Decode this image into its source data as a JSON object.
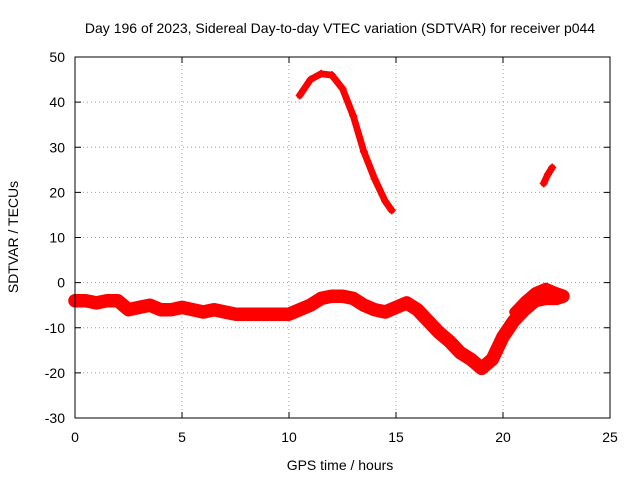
{
  "chart_data": {
    "type": "scatter",
    "title": "Day 196 of 2023, Sidereal Day-to-day VTEC variation (SDTVAR) for receiver p044",
    "xlabel": "GPS time / hours",
    "ylabel": "SDTVAR / TECUs",
    "xlim": [
      0,
      25
    ],
    "ylim": [
      -30,
      50
    ],
    "xticks": [
      0,
      5,
      10,
      15,
      20,
      25
    ],
    "yticks": [
      -30,
      -20,
      -10,
      0,
      10,
      20,
      30,
      40,
      50
    ],
    "xtick_labels": [
      "0",
      "5",
      "10",
      "15",
      "20",
      "25"
    ],
    "ytick_labels": [
      "-30",
      "-20",
      "-10",
      "0",
      "10",
      "20",
      "30",
      "40",
      "50"
    ],
    "grid": true,
    "marker": "+",
    "color": "#ff0000",
    "series": [
      {
        "name": "baseline-arc",
        "width_tecu": 3,
        "x": [
          0.0,
          0.5,
          1.0,
          1.5,
          2.0,
          2.5,
          3.0,
          3.5,
          4.0,
          4.5,
          5.0,
          5.5,
          6.0,
          6.5,
          7.0,
          7.5,
          8.0,
          8.5,
          9.0,
          9.5,
          10.0,
          10.5,
          11.0,
          11.5,
          12.0,
          12.5,
          13.0,
          13.5,
          14.0,
          14.5,
          15.0,
          15.5,
          16.0,
          16.5,
          17.0,
          17.5,
          18.0,
          18.5,
          19.0,
          19.5,
          20.0,
          20.5,
          21.0,
          21.5,
          22.0,
          22.5,
          22.8
        ],
        "y": [
          -4,
          -4,
          -4.5,
          -4,
          -4,
          -6,
          -5.5,
          -5,
          -6,
          -6,
          -5.5,
          -6,
          -6.5,
          -6,
          -6.5,
          -7,
          -7,
          -7,
          -7,
          -7,
          -7,
          -6,
          -5,
          -3.5,
          -3,
          -3,
          -3.5,
          -5,
          -6,
          -6.5,
          -5.5,
          -4.5,
          -6,
          -8.5,
          -11,
          -13,
          -15.5,
          -17,
          -19,
          -17,
          -12,
          -8.5,
          -6,
          -4,
          -3.5,
          -3.5,
          -3
        ]
      },
      {
        "name": "upper-arc",
        "width_tecu": 2,
        "x": [
          20.5,
          21.0,
          21.5,
          22.0,
          22.5,
          22.8
        ],
        "y": [
          -6.5,
          -4,
          -2,
          -1,
          -2,
          -2.5
        ]
      },
      {
        "name": "midday-arc",
        "width_tecu": 1.5,
        "x": [
          10.5,
          11.0,
          11.5,
          12.0,
          12.5,
          13.0,
          13.5,
          14.0,
          14.5,
          14.8
        ],
        "y": [
          41.5,
          45,
          46.3,
          46,
          43,
          37,
          29,
          23,
          18,
          16
        ]
      },
      {
        "name": "late-arc",
        "width_tecu": 1.5,
        "x": [
          21.9,
          22.1,
          22.3
        ],
        "y": [
          22,
          24,
          25.5
        ]
      }
    ]
  }
}
